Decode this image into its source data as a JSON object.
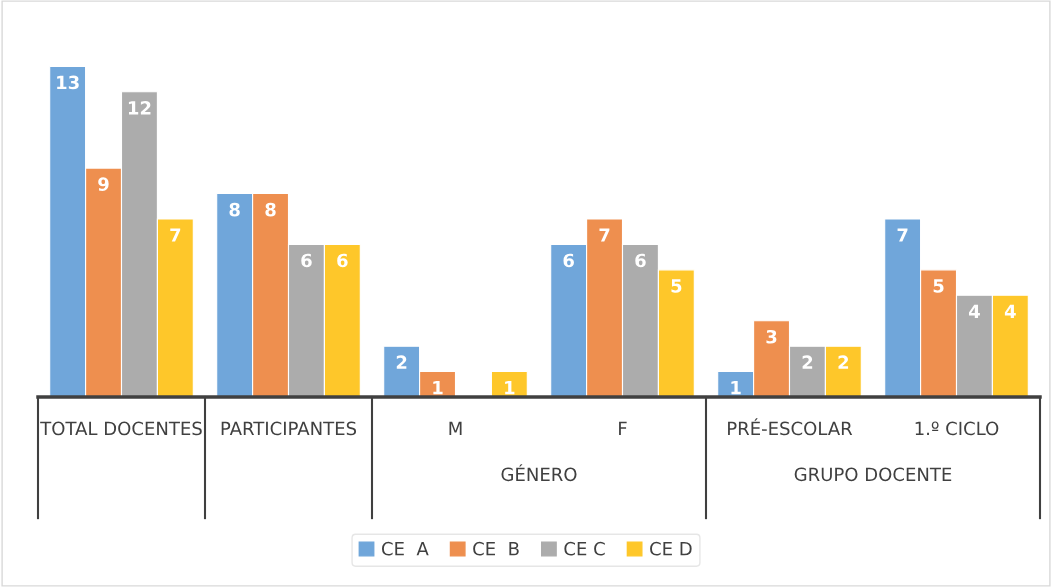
{
  "chart_data": {
    "type": "bar",
    "categories": [
      "TOTAL DOCENTES",
      "PARTICIPANTES",
      "M",
      "F",
      "PRÉ-ESCOLAR",
      "1.º CICLO"
    ],
    "series": [
      {
        "name": "CE  A",
        "color": "#70a6da",
        "values": [
          13,
          8,
          2,
          6,
          1,
          7
        ]
      },
      {
        "name": "CE  B",
        "color": "#ee8f4f",
        "values": [
          9,
          8,
          1,
          7,
          3,
          5
        ]
      },
      {
        "name": "CE C",
        "color": "#acacac",
        "values": [
          12,
          6,
          null,
          6,
          2,
          4
        ]
      },
      {
        "name": "CE D",
        "color": "#fec72a",
        "values": [
          7,
          6,
          1,
          5,
          2,
          4
        ]
      }
    ],
    "annotations": [
      "GÉNERO",
      "GRUPO DOCENTE"
    ],
    "data_labels": true,
    "legend": "bottom"
  }
}
